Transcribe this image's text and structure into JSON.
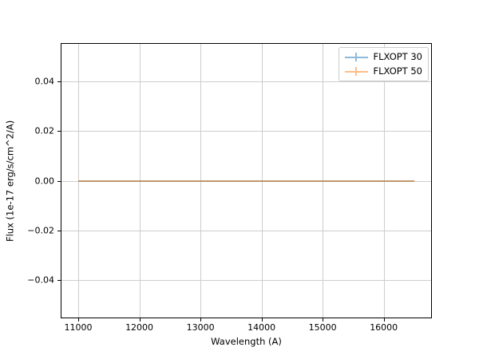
{
  "chart_data": {
    "type": "line",
    "title": "",
    "xlabel": "Wavelength (A)",
    "ylabel": "Flux (1e-17 erg/s/cm^2/A)",
    "xlim": [
      10725,
      16775
    ],
    "ylim": [
      -0.055,
      0.055
    ],
    "xticks": [
      11000,
      12000,
      13000,
      14000,
      15000,
      16000
    ],
    "yticks": [
      0.04,
      0.02,
      0.0,
      -0.02,
      -0.04
    ],
    "grid": true,
    "grid_color": "#cdcdcd",
    "legend_position": "upper right",
    "series": [
      {
        "name": "FLXOPT 30",
        "color": "#1f77b4",
        "opacity": 0.5,
        "style": "errorbar",
        "x": [
          11000,
          16500
        ],
        "values": [
          0.0,
          0.0
        ]
      },
      {
        "name": "FLXOPT 50",
        "color": "#ff7f0e",
        "opacity": 0.5,
        "style": "errorbar",
        "x": [
          11000,
          16500
        ],
        "values": [
          0.0,
          0.0
        ]
      }
    ]
  }
}
